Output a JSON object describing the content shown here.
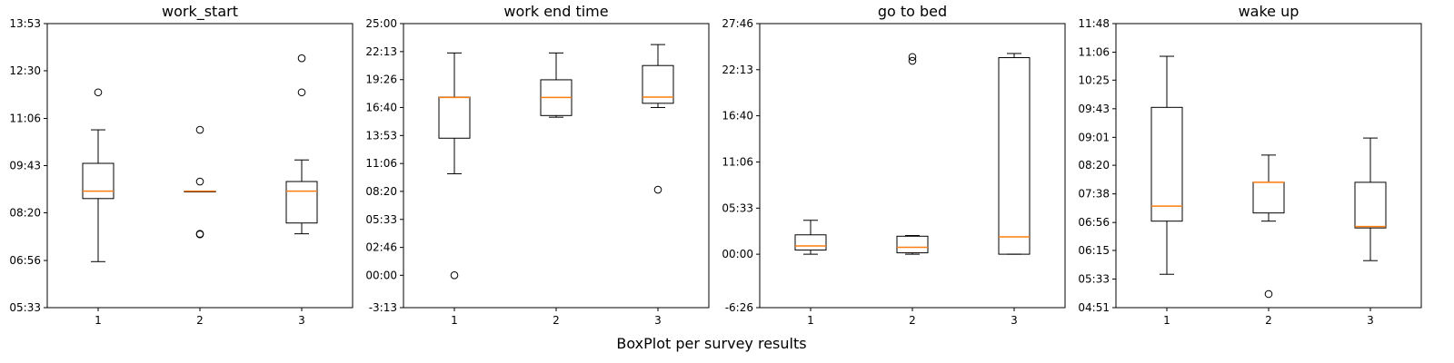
{
  "figure": {
    "caption": "BoxPlot per survey results"
  },
  "style": {
    "median_color": "#ff7f0e",
    "line_color": "#000000",
    "background": "#ffffff"
  },
  "chart_data": [
    {
      "type": "box",
      "title": "work_start",
      "categories": [
        "1",
        "2",
        "3"
      ],
      "yticks": [
        "05:33",
        "06:56",
        "08:20",
        "09:43",
        "11:06",
        "12:30",
        "13:53"
      ],
      "ylim": [
        333,
        833
      ],
      "boxes": [
        {
          "whislo": 414,
          "q1": 525,
          "med": 538,
          "q3": 587,
          "whishi": 646,
          "fliers": [
            712
          ]
        },
        {
          "whislo": 538,
          "q1": 538,
          "med": 538,
          "q3": 538,
          "whishi": 538,
          "fliers": [
            462,
            463,
            555,
            646
          ]
        },
        {
          "whislo": 463,
          "q1": 482,
          "med": 538,
          "q3": 555,
          "whishi": 593,
          "fliers": [
            712,
            772
          ]
        }
      ]
    },
    {
      "type": "box",
      "title": "work end time",
      "categories": [
        "1",
        "2",
        "3"
      ],
      "yticks": [
        "-3:13",
        "00:00",
        "02:46",
        "05:33",
        "08:20",
        "11:06",
        "13:53",
        "16:40",
        "19:26",
        "22:13",
        "25:00"
      ],
      "ylim": [
        -193,
        1500
      ],
      "boxes": [
        {
          "whislo": 605,
          "q1": 817,
          "med": 1060,
          "q3": 1062,
          "whishi": 1325,
          "fliers": [
            0
          ]
        },
        {
          "whislo": 942,
          "q1": 952,
          "med": 1060,
          "q3": 1165,
          "whishi": 1325,
          "fliers": []
        },
        {
          "whislo": 1000,
          "q1": 1025,
          "med": 1062,
          "q3": 1250,
          "whishi": 1375,
          "fliers": [
            510
          ]
        }
      ]
    },
    {
      "type": "box",
      "title": "go to bed",
      "categories": [
        "1",
        "2",
        "3"
      ],
      "yticks": [
        "-6:26",
        "00:00",
        "05:33",
        "11:06",
        "16:40",
        "22:13",
        "27:46"
      ],
      "ylim": [
        -386,
        1666
      ],
      "boxes": [
        {
          "whislo": 0,
          "q1": 30,
          "med": 60,
          "q3": 140,
          "whishi": 245,
          "fliers": []
        },
        {
          "whislo": 0,
          "q1": 10,
          "med": 50,
          "q3": 130,
          "whishi": 135,
          "fliers": [
            1397,
            1425
          ]
        },
        {
          "whislo": 0,
          "q1": 0,
          "med": 125,
          "q3": 1420,
          "whishi": 1450,
          "fliers": []
        }
      ]
    },
    {
      "type": "box",
      "title": "wake up",
      "categories": [
        "1",
        "2",
        "3"
      ],
      "yticks": [
        "04:51",
        "05:33",
        "06:15",
        "06:56",
        "07:38",
        "08:20",
        "09:01",
        "09:43",
        "10:25",
        "11:06",
        "11:48"
      ],
      "ylim": [
        291,
        708
      ],
      "boxes": [
        {
          "whislo": 340,
          "q1": 418,
          "med": 440,
          "q3": 585,
          "whishi": 660,
          "fliers": []
        },
        {
          "whislo": 418,
          "q1": 430,
          "med": 475,
          "q3": 475,
          "whishi": 515,
          "fliers": [
            311
          ]
        },
        {
          "whislo": 360,
          "q1": 408,
          "med": 410,
          "q3": 475,
          "whishi": 540,
          "fliers": []
        }
      ]
    }
  ]
}
